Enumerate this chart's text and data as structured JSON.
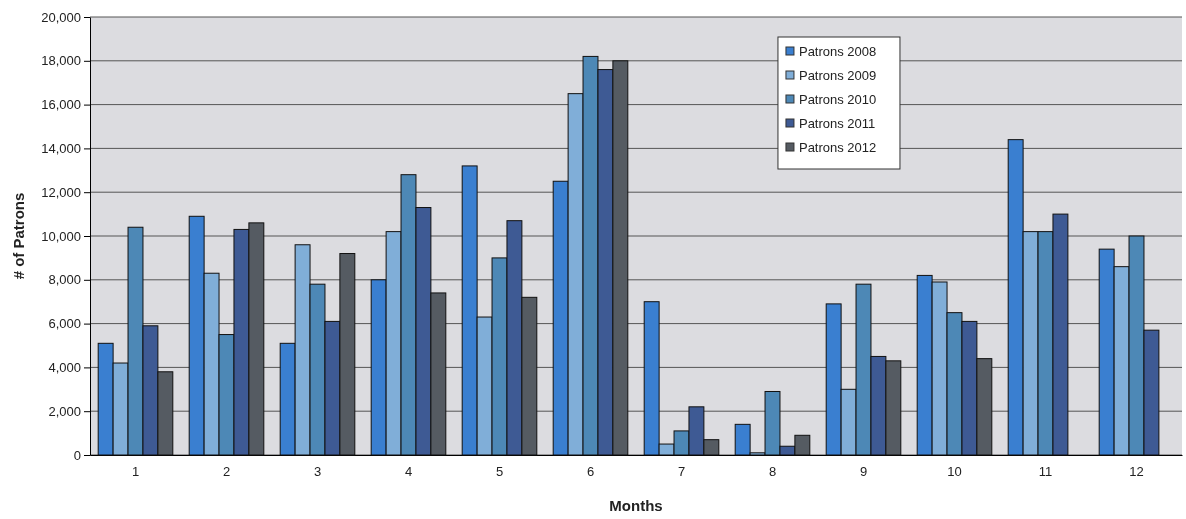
{
  "chart_data": {
    "type": "bar",
    "xlabel": "Months",
    "ylabel": "# of Patrons",
    "categories": [
      "1",
      "2",
      "3",
      "4",
      "5",
      "6",
      "7",
      "8",
      "9",
      "10",
      "11",
      "12"
    ],
    "series": [
      {
        "name": "Patrons 2008",
        "color": "#3a7fd0",
        "values": [
          5100,
          10900,
          5100,
          8000,
          13200,
          12500,
          7000,
          1400,
          6900,
          8200,
          14400,
          9400
        ]
      },
      {
        "name": "Patrons 2009",
        "color": "#80aed8",
        "values": [
          4200,
          8300,
          9600,
          10200,
          6300,
          16500,
          500,
          100,
          3000,
          7900,
          10200,
          8600
        ]
      },
      {
        "name": "Patrons 2010",
        "color": "#4d88b6",
        "values": [
          10400,
          5500,
          7800,
          12800,
          9000,
          18200,
          1100,
          2900,
          7800,
          6500,
          10200,
          10000
        ]
      },
      {
        "name": "Patrons 2011",
        "color": "#3e5a94",
        "values": [
          5900,
          10300,
          6100,
          11300,
          10700,
          17600,
          2200,
          400,
          4500,
          6100,
          11000,
          5700
        ]
      },
      {
        "name": "Patrons 2012",
        "color": "#555b62",
        "values": [
          3800,
          10600,
          9200,
          7400,
          7200,
          18000,
          700,
          900,
          4300,
          4400,
          null,
          null
        ]
      }
    ],
    "ylim": [
      0,
      20000
    ],
    "yticks": [
      {
        "value": 0,
        "label": "0"
      },
      {
        "value": 2000,
        "label": "2,000"
      },
      {
        "value": 4000,
        "label": "4,000"
      },
      {
        "value": 6000,
        "label": "6,000"
      },
      {
        "value": 8000,
        "label": "8,000"
      },
      {
        "value": 10000,
        "label": "10,000"
      },
      {
        "value": 12000,
        "label": "12,000"
      },
      {
        "value": 14000,
        "label": "14,000"
      },
      {
        "value": 16000,
        "label": "16,000"
      },
      {
        "value": 18000,
        "label": "18,000"
      },
      {
        "value": 20000,
        "label": "20,000"
      }
    ],
    "grid": "y",
    "legend": "top right"
  }
}
